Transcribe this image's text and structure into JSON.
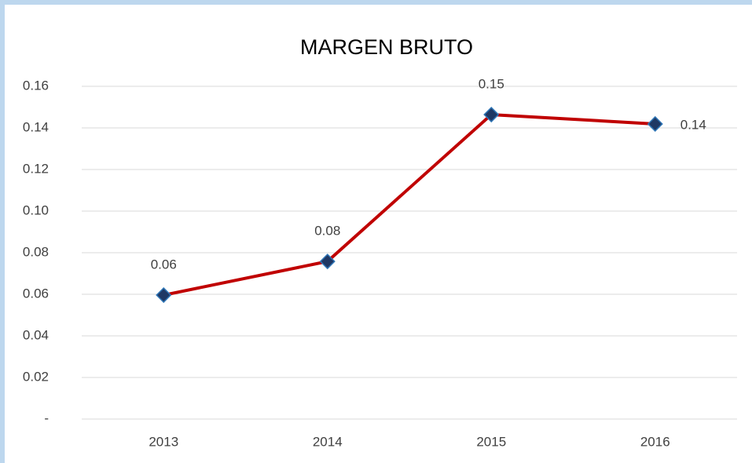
{
  "chart_data": {
    "type": "line",
    "title": "MARGEN BRUTO",
    "categories": [
      "2013",
      "2014",
      "2015",
      "2016"
    ],
    "series": [
      {
        "name": "MARGEN BRUTO",
        "color": "#c00000",
        "marker_color": "#1f3864",
        "values": [
          0.0596,
          0.0758,
          0.1464,
          0.1419
        ],
        "value_labels": [
          "0.06",
          "0.08",
          "0.15",
          "0.14"
        ]
      }
    ],
    "ylim": [
      0,
      0.16
    ],
    "yticks": [
      {
        "value": 0,
        "label": "-"
      },
      0.02,
      0.04,
      0.06,
      0.08,
      {
        "value": 0.1,
        "label": "0.10"
      },
      0.12,
      0.14,
      0.16
    ],
    "grid": true
  }
}
